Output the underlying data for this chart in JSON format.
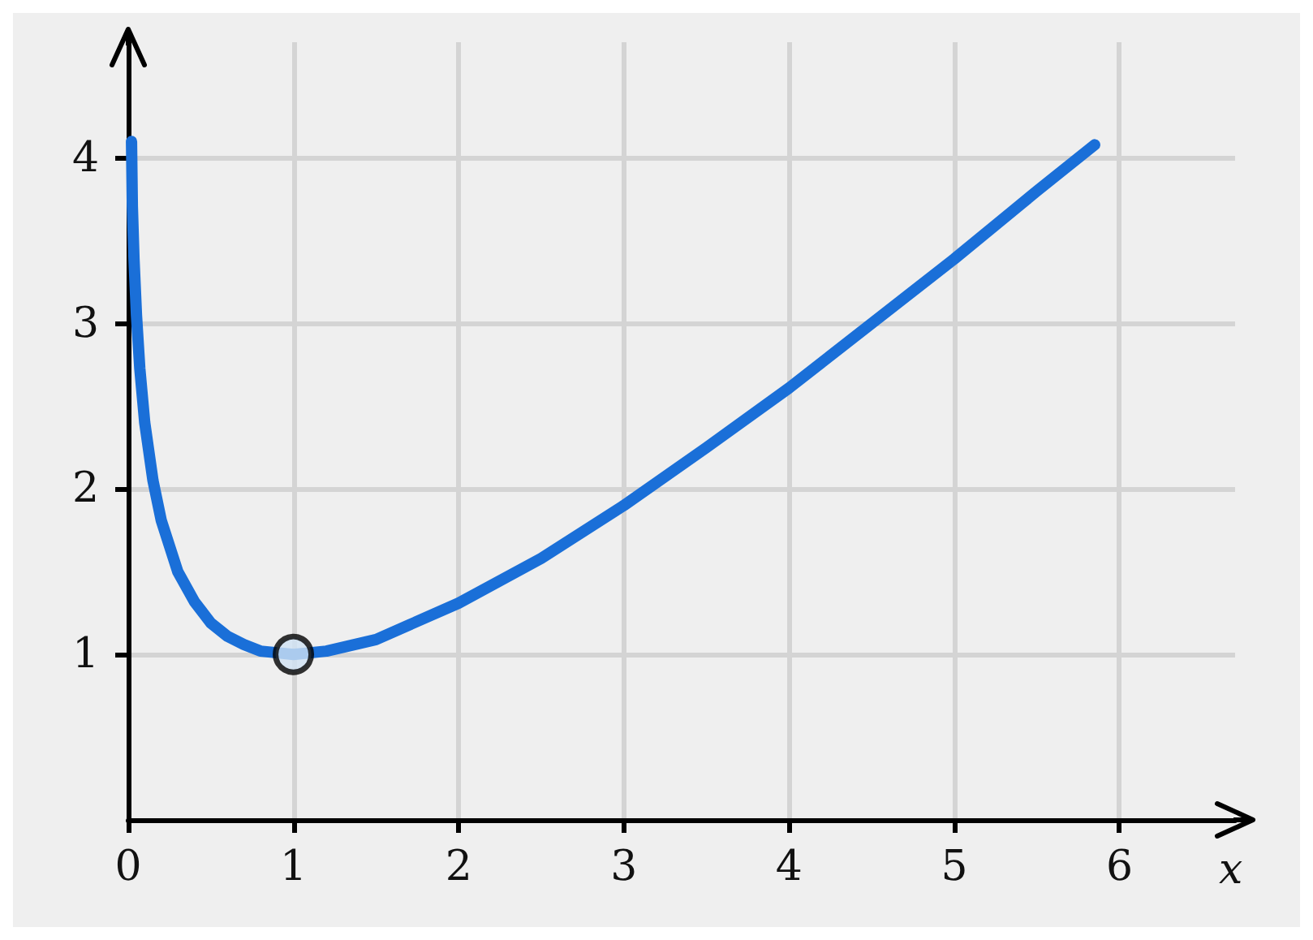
{
  "chart_data": {
    "type": "line",
    "xlabel": "x",
    "xlim": [
      0,
      6.7
    ],
    "ylim": [
      0,
      4.7
    ],
    "xticks": [
      0,
      1,
      2,
      3,
      4,
      5,
      6
    ],
    "yticks": [
      1,
      2,
      3,
      4
    ],
    "grid": true,
    "line_style": "solid",
    "series": [
      {
        "color": "#1a6fd8",
        "marker": "none",
        "x": [
          0.02,
          0.025,
          0.035,
          0.05,
          0.07,
          0.1,
          0.15,
          0.2,
          0.3,
          0.4,
          0.5,
          0.6,
          0.7,
          0.8,
          0.9,
          1,
          1.2,
          1.5,
          2,
          2.5,
          3,
          3.5,
          4,
          4.5,
          5,
          5.5,
          5.85
        ],
        "values": [
          4.1,
          3.71,
          3.39,
          3.05,
          2.73,
          2.4,
          2.05,
          1.81,
          1.5,
          1.32,
          1.19,
          1.11,
          1.06,
          1.02,
          1.01,
          1,
          1.02,
          1.09,
          1.31,
          1.58,
          1.9,
          2.25,
          2.61,
          3,
          3.39,
          3.8,
          4.08
        ]
      },
      {
        "type": "scatter",
        "color": "#d0e2f4",
        "marker": "circle",
        "x": [
          1
        ],
        "values": [
          1
        ]
      }
    ]
  }
}
